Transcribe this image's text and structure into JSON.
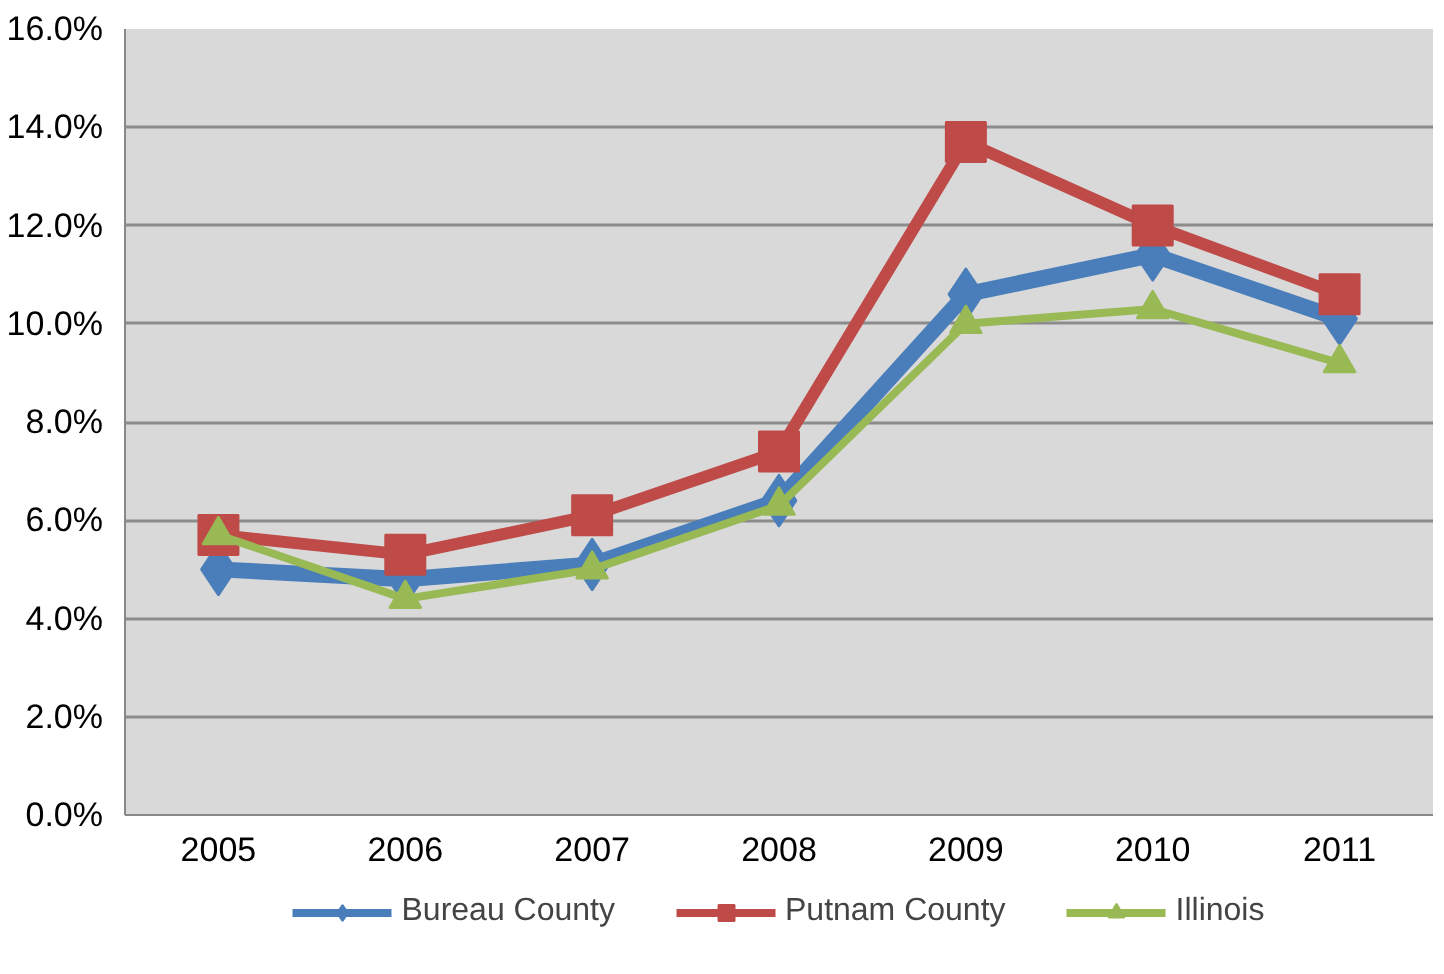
{
  "chart_data": {
    "type": "line",
    "categories": [
      "2005",
      "2006",
      "2007",
      "2008",
      "2009",
      "2010",
      "2011"
    ],
    "series": [
      {
        "name": "Bureau County",
        "color": "#4a7ebb",
        "marker": "diamond",
        "values": [
          5.0,
          4.8,
          5.1,
          6.4,
          10.6,
          11.4,
          10.1
        ]
      },
      {
        "name": "Putnam County",
        "color": "#be4b48",
        "marker": "square",
        "values": [
          5.7,
          5.3,
          6.1,
          7.4,
          13.7,
          12.0,
          10.6
        ]
      },
      {
        "name": "Illinois",
        "color": "#98b954",
        "marker": "triangle",
        "values": [
          5.7,
          4.4,
          5.0,
          6.3,
          10.0,
          10.3,
          9.2
        ]
      }
    ],
    "ylim": [
      0,
      16
    ],
    "yticks": [
      {
        "value": 0,
        "label": "0.0%"
      },
      {
        "value": 2,
        "label": "2.0%"
      },
      {
        "value": 4,
        "label": "4.0%"
      },
      {
        "value": 6,
        "label": "6.0%"
      },
      {
        "value": 8,
        "label": "8.0%"
      },
      {
        "value": 10,
        "label": "10.0%"
      },
      {
        "value": 12,
        "label": "12.0%"
      },
      {
        "value": 14,
        "label": "14.0%"
      },
      {
        "value": 16,
        "label": "16.0%"
      }
    ],
    "grid": "y",
    "legend": "bottom",
    "line_style": "solid"
  }
}
